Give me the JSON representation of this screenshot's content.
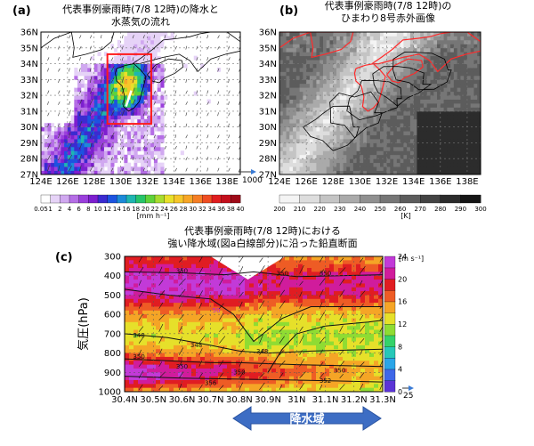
{
  "chart_data": [
    {
      "panel": "(a)",
      "type": "heatmap",
      "title": "代表事例豪雨時(7/8 12時)の降水と\n水蒸気の流れ",
      "x_ticks": [
        "124E",
        "126E",
        "128E",
        "130E",
        "132E",
        "134E",
        "136E",
        "138E"
      ],
      "y_ticks": [
        "27N",
        "28N",
        "29N",
        "30N",
        "31N",
        "32N",
        "33N",
        "34N",
        "35N",
        "36N"
      ],
      "xlim": [
        124,
        139
      ],
      "ylim": [
        27,
        36
      ],
      "colorbar": {
        "ticks": [
          "0.05",
          "1",
          "2",
          "4",
          "6",
          "8",
          "10",
          "12",
          "14",
          "16",
          "18",
          "20",
          "22",
          "24",
          "26",
          "28",
          "30",
          "32",
          "34",
          "36",
          "38",
          "40"
        ],
        "unit": "[mm h⁻¹]"
      },
      "vector_ref": "1000",
      "highlight_box": {
        "lon": [
          129,
          132.3
        ],
        "lat": [
          30.2,
          34.6
        ]
      }
    },
    {
      "panel": "(b)",
      "type": "heatmap",
      "title": "代表事例豪雨時(7/8 12時)の\nひまわり8号赤外画像",
      "x_ticks": [
        "124E",
        "126E",
        "128E",
        "130E",
        "132E",
        "134E",
        "136E",
        "138E"
      ],
      "y_ticks": [
        "27N",
        "28N",
        "29N",
        "30N",
        "31N",
        "32N",
        "33N",
        "34N",
        "35N",
        "36N"
      ],
      "xlim": [
        124,
        139
      ],
      "ylim": [
        27,
        36
      ],
      "colorbar": {
        "ticks": [
          "200",
          "210",
          "220",
          "230",
          "240",
          "250",
          "260",
          "270",
          "280",
          "290",
          "300"
        ],
        "unit": "[K]"
      }
    },
    {
      "panel": "(c)",
      "type": "heatmap",
      "title": "代表事例豪雨時(7/8 12時)における\n強い降水域(図a白線部分)に沿った鉛直断面",
      "ylabel": "気圧(hPa)",
      "x_ticks": [
        "30.4N",
        "30.5N",
        "30.6N",
        "30.7N",
        "30.8N",
        "30.9N",
        "31N",
        "31.1N",
        "31.2N",
        "31.3N"
      ],
      "y_ticks": [
        "300",
        "400",
        "500",
        "600",
        "700",
        "800",
        "900",
        "1000"
      ],
      "xlim": [
        30.4,
        31.3
      ],
      "ylim": [
        1000,
        300
      ],
      "contour_labels": [
        "350",
        "350",
        "350",
        "348",
        "348",
        "348",
        "350",
        "350",
        "350",
        "350",
        "356",
        "352",
        "50"
      ],
      "colorbar": {
        "ticks": [
          "0",
          "4",
          "8",
          "12",
          "16",
          "20",
          "24"
        ],
        "unit": "[m s⁻¹]"
      },
      "vector_ref": "25",
      "rain_band_label": "降水域"
    }
  ],
  "colors": {
    "precip_scale": [
      "#ffffff",
      "#e6d3f7",
      "#d0a8f0",
      "#b56ee6",
      "#9a3fdc",
      "#7d1fcf",
      "#3b2bd0",
      "#1d53e0",
      "#1c8ad8",
      "#1fb5b0",
      "#27c46a",
      "#5fd23a",
      "#a8dc2f",
      "#e8e02a",
      "#f6c62a",
      "#f7a627",
      "#f57e25",
      "#ef4d22",
      "#e01d1f",
      "#c30f1c",
      "#9e0a18"
    ],
    "speed_scale": [
      "#5b34d6",
      "#3f67e8",
      "#2aa5e8",
      "#27c8b8",
      "#35d26a",
      "#8fdc33",
      "#e6e02a",
      "#f5a526",
      "#ee5c25",
      "#e01d22",
      "#d01c9c",
      "#c23ad8"
    ],
    "ir_scale": [
      "#f4f4f4",
      "#dddddd",
      "#c4c4c4",
      "#aaaaaa",
      "#909090",
      "#767676",
      "#5c5c5c",
      "#434343",
      "#2c2c2c",
      "#161616"
    ],
    "highlight": "#ff1a1a",
    "arrow": "#3a7bd5"
  }
}
